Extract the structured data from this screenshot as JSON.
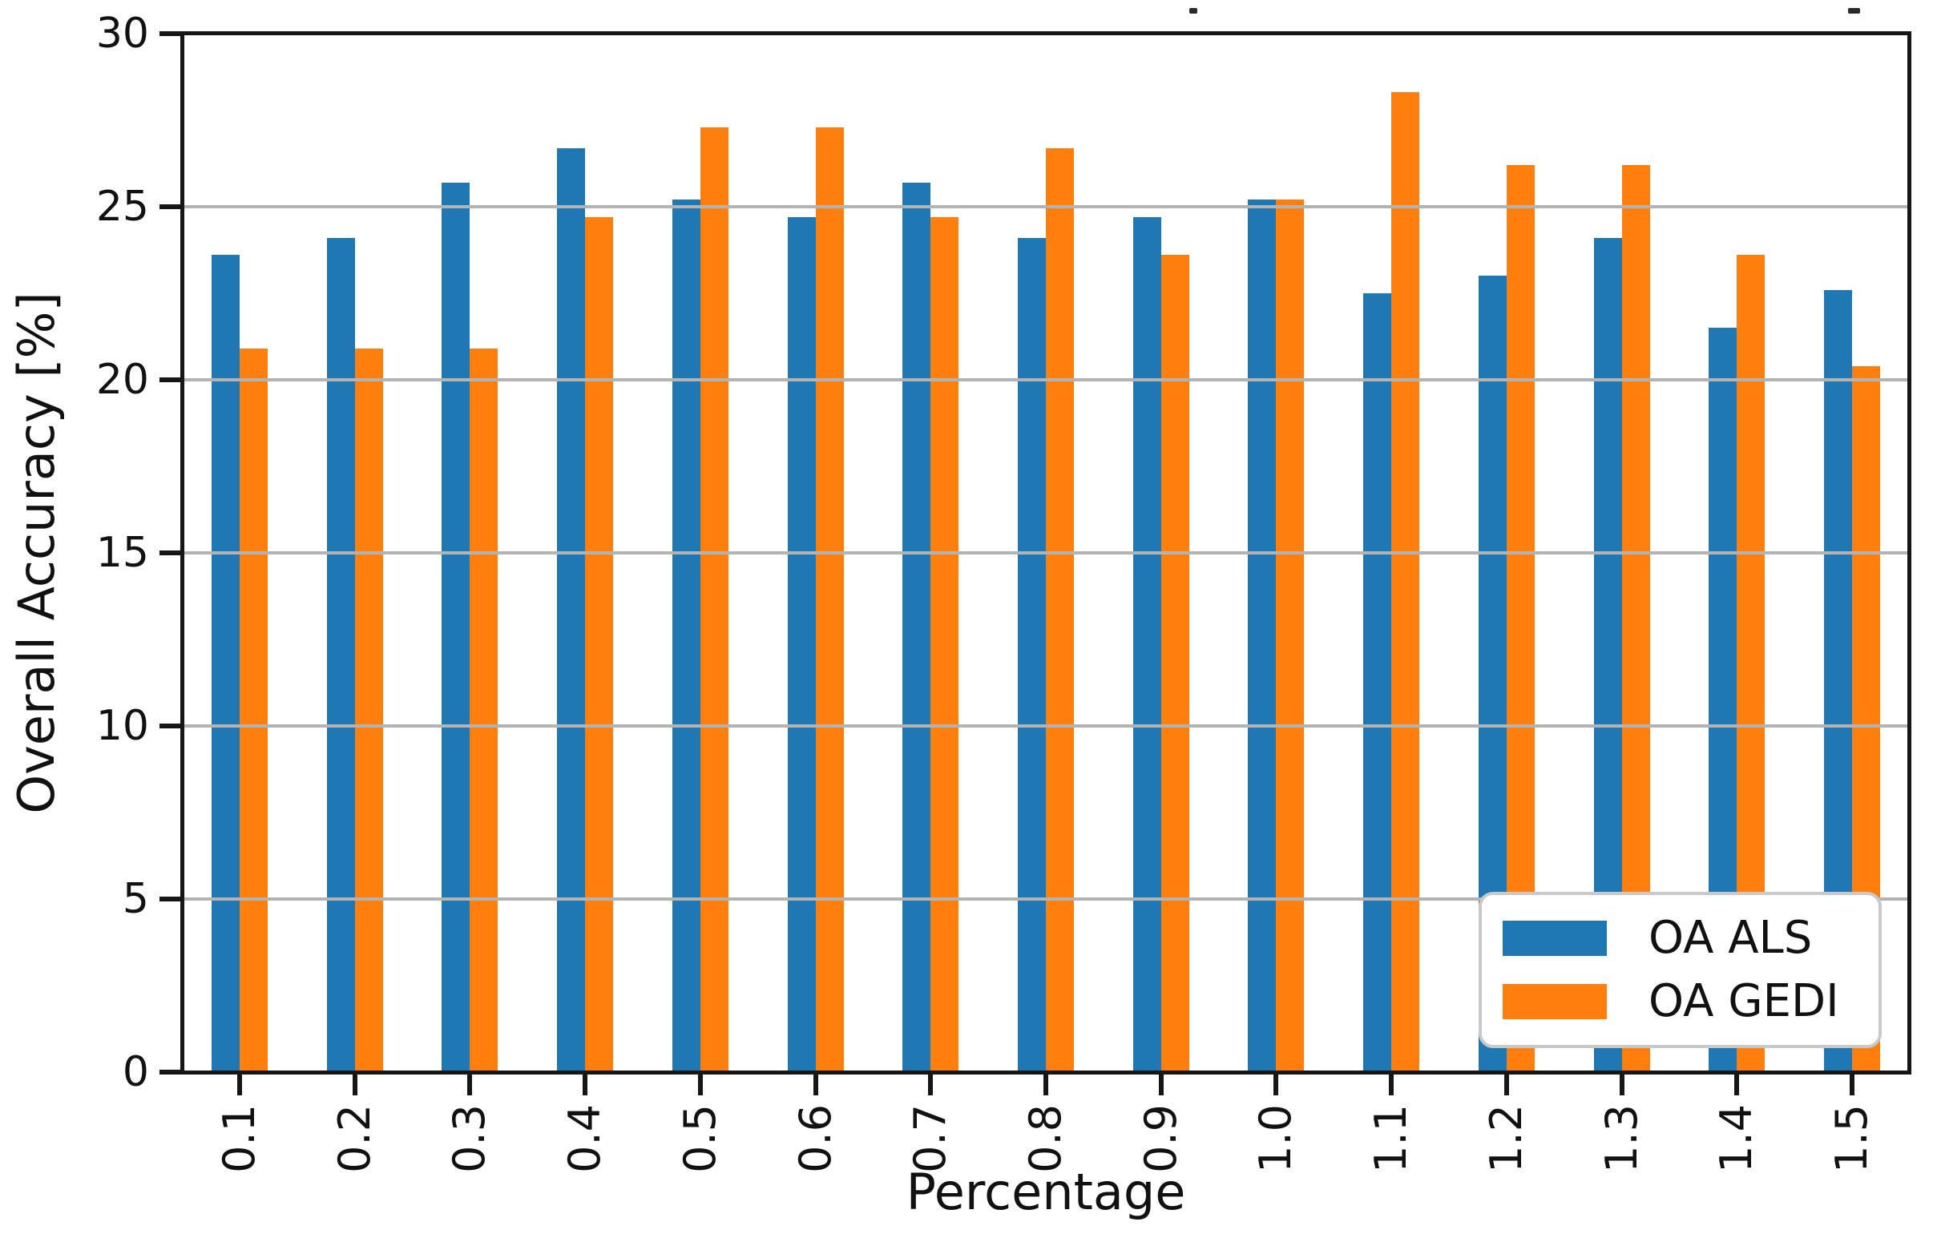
{
  "figure": {
    "background": "#ffffff",
    "axis_color": "#161616",
    "grid_color": "#b3b3b3"
  },
  "chart_data": {
    "type": "bar",
    "title": "",
    "xlabel": "Percentage",
    "ylabel": "Overall Accuracy [%]",
    "categories": [
      "0.1",
      "0.2",
      "0.3",
      "0.4",
      "0.5",
      "0.6",
      "0.7",
      "0.8",
      "0.9",
      "1.0",
      "1.1",
      "1.2",
      "1.3",
      "1.4",
      "1.5"
    ],
    "series": [
      {
        "name": "OA ALS",
        "color": "#1f77b4",
        "values": [
          23.6,
          24.1,
          25.7,
          26.7,
          25.2,
          24.7,
          25.7,
          24.1,
          24.7,
          25.2,
          22.5,
          23.0,
          24.1,
          21.5,
          22.6
        ]
      },
      {
        "name": "OA GEDI",
        "color": "#ff7f0e",
        "values": [
          20.9,
          20.9,
          20.9,
          24.7,
          27.3,
          27.3,
          24.7,
          26.7,
          23.6,
          25.2,
          28.3,
          26.2,
          26.2,
          23.6,
          20.4
        ]
      }
    ],
    "ylim": [
      0,
      30
    ],
    "yticks": [
      0,
      5,
      10,
      15,
      20,
      25,
      30
    ],
    "grid": true,
    "grid_above_bars": true,
    "legend": {
      "position": "lower right",
      "items": [
        "OA ALS",
        "OA GEDI"
      ]
    }
  }
}
